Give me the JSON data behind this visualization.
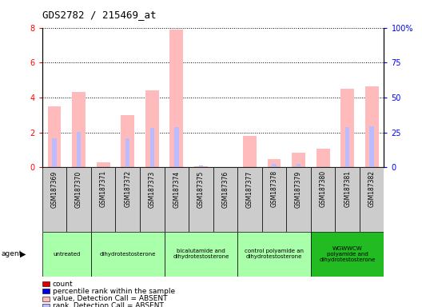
{
  "title": "GDS2782 / 215469_at",
  "samples": [
    "GSM187369",
    "GSM187370",
    "GSM187371",
    "GSM187372",
    "GSM187373",
    "GSM187374",
    "GSM187375",
    "GSM187376",
    "GSM187377",
    "GSM187378",
    "GSM187379",
    "GSM187380",
    "GSM187381",
    "GSM187382"
  ],
  "value_absent": [
    3.5,
    4.3,
    0.3,
    3.0,
    4.4,
    7.9,
    0.05,
    0.0,
    1.8,
    0.45,
    0.85,
    1.05,
    4.5,
    4.65
  ],
  "rank_absent": [
    1.65,
    2.05,
    0.0,
    1.65,
    2.25,
    2.3,
    0.1,
    0.0,
    0.0,
    0.2,
    0.2,
    0.0,
    2.3,
    2.35
  ],
  "agent_groups": [
    {
      "label": "untreated",
      "start": 0,
      "end": 2,
      "color": "#aaffaa"
    },
    {
      "label": "dihydrotestosterone",
      "start": 2,
      "end": 5,
      "color": "#aaffaa"
    },
    {
      "label": "bicalutamide and\ndihydrotestosterone",
      "start": 5,
      "end": 8,
      "color": "#aaffaa"
    },
    {
      "label": "control polyamide an\ndihydrotestosterone",
      "start": 8,
      "end": 11,
      "color": "#aaffaa"
    },
    {
      "label": "WGWWCW\npolyamide and\ndihydrotestosterone",
      "start": 11,
      "end": 14,
      "color": "#22bb22"
    }
  ],
  "ylim_left": [
    0,
    8
  ],
  "ylim_right": [
    0,
    100
  ],
  "yticks_left": [
    0,
    2,
    4,
    6,
    8
  ],
  "ytick_labels_left": [
    "0",
    "2",
    "4",
    "6",
    "8"
  ],
  "yticks_right": [
    0,
    25,
    50,
    75,
    100
  ],
  "ytick_labels_right": [
    "0",
    "25",
    "50",
    "75",
    "100%"
  ],
  "color_value_absent": "#ffbbbb",
  "color_rank_absent": "#bbbbff",
  "color_count": "#dd0000",
  "color_rank": "#0000dd",
  "bg_color": "#ffffff",
  "sample_box_color": "#cccccc",
  "legend_items": [
    {
      "label": "count",
      "color": "#dd0000"
    },
    {
      "label": "percentile rank within the sample",
      "color": "#0000dd"
    },
    {
      "label": "value, Detection Call = ABSENT",
      "color": "#ffbbbb"
    },
    {
      "label": "rank, Detection Call = ABSENT",
      "color": "#bbbbff"
    }
  ]
}
